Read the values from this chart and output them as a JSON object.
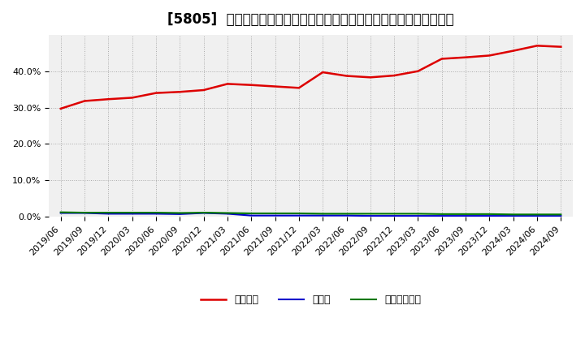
{
  "title": "[5805]  自己資本、のれん、繰延税金資産の総資産に対する比率の推移",
  "x_labels": [
    "2019/06",
    "2019/09",
    "2019/12",
    "2020/03",
    "2020/06",
    "2020/09",
    "2020/12",
    "2021/03",
    "2021/06",
    "2021/09",
    "2021/12",
    "2022/03",
    "2022/06",
    "2022/09",
    "2022/12",
    "2023/03",
    "2023/06",
    "2023/09",
    "2023/12",
    "2024/03",
    "2024/06",
    "2024/09"
  ],
  "equity_ratio": [
    0.297,
    0.318,
    0.323,
    0.327,
    0.34,
    0.343,
    0.348,
    0.365,
    0.362,
    0.358,
    0.354,
    0.397,
    0.387,
    0.383,
    0.388,
    0.4,
    0.434,
    0.438,
    0.443,
    0.456,
    0.47,
    0.467
  ],
  "goodwill_ratio": [
    0.01,
    0.01,
    0.008,
    0.008,
    0.008,
    0.007,
    0.01,
    0.008,
    0.003,
    0.003,
    0.003,
    0.003,
    0.003,
    0.002,
    0.002,
    0.002,
    0.002,
    0.002,
    0.002,
    0.002,
    0.002,
    0.002
  ],
  "deferred_tax_ratio": [
    0.012,
    0.011,
    0.011,
    0.011,
    0.011,
    0.01,
    0.011,
    0.01,
    0.009,
    0.009,
    0.009,
    0.008,
    0.008,
    0.008,
    0.008,
    0.008,
    0.007,
    0.007,
    0.007,
    0.006,
    0.006,
    0.006
  ],
  "equity_color": "#dd0000",
  "goodwill_color": "#0000cc",
  "deferred_tax_color": "#007700",
  "background_color": "#ffffff",
  "plot_bg_color": "#f0f0f0",
  "grid_color": "#aaaaaa",
  "ylim": [
    0.0,
    0.5
  ],
  "yticks": [
    0.0,
    0.1,
    0.2,
    0.3,
    0.4
  ],
  "legend_label_equity": "自己資本",
  "legend_label_goodwill": "のれん",
  "legend_label_deferred": "繰延税金資産",
  "title_fontsize": 12,
  "legend_fontsize": 9,
  "tick_fontsize": 8
}
